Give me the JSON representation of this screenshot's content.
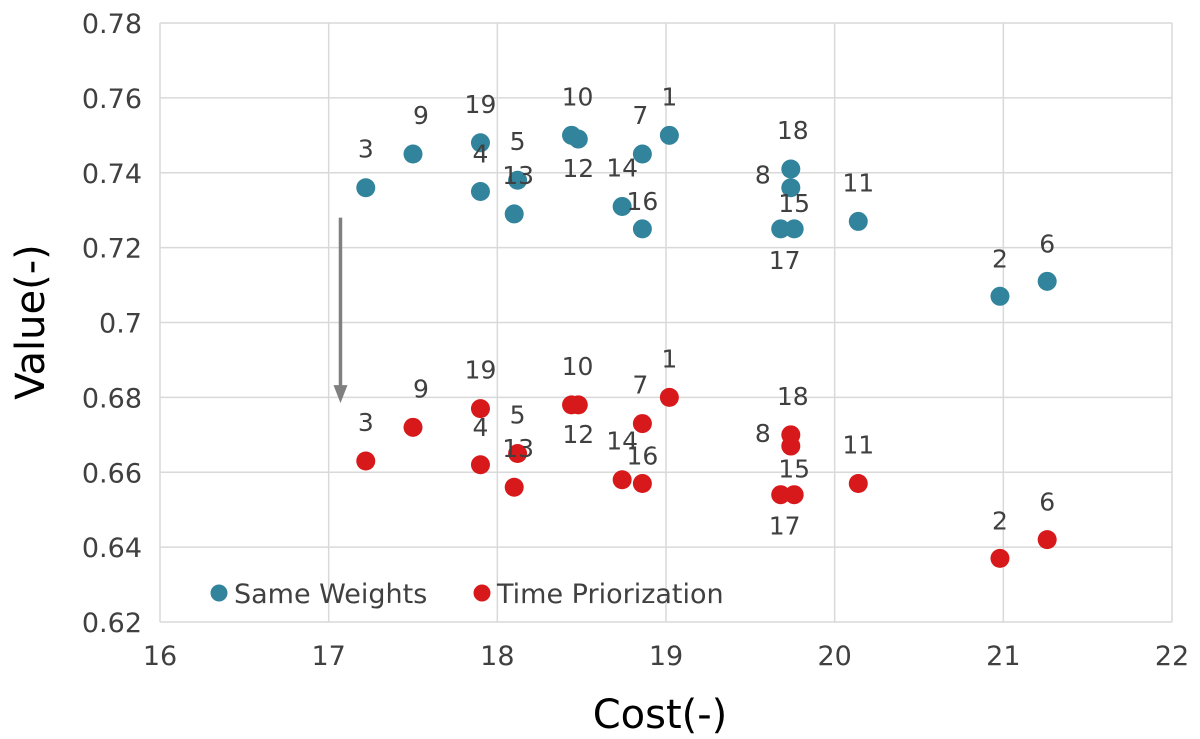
{
  "chart_data": {
    "type": "scatter",
    "xlabel": "Cost(-)",
    "ylabel": "Value(-)",
    "xlim": [
      16,
      22
    ],
    "ylim": [
      0.62,
      0.78
    ],
    "xticks": [
      16,
      17,
      18,
      19,
      20,
      21,
      22
    ],
    "yticks": [
      0.62,
      0.64,
      0.66,
      0.68,
      0.7,
      0.72,
      0.74,
      0.76,
      0.78
    ],
    "ytick_labels": [
      "0.62",
      "0.64",
      "0.66",
      "0.68",
      "0.7",
      "0.72",
      "0.74",
      "0.76",
      "0.78"
    ],
    "grid": true,
    "legend_placement": "bottom-left",
    "series": [
      {
        "name": "Same Weights",
        "color": "#31849b",
        "points": [
          {
            "label": "1",
            "x": 19.02,
            "y": 0.75
          },
          {
            "label": "2",
            "x": 20.98,
            "y": 0.707
          },
          {
            "label": "3",
            "x": 17.22,
            "y": 0.736
          },
          {
            "label": "4",
            "x": 17.9,
            "y": 0.735
          },
          {
            "label": "5",
            "x": 18.12,
            "y": 0.738
          },
          {
            "label": "6",
            "x": 21.26,
            "y": 0.711
          },
          {
            "label": "7",
            "x": 18.86,
            "y": 0.745
          },
          {
            "label": "8",
            "x": 19.74,
            "y": 0.736
          },
          {
            "label": "9",
            "x": 17.5,
            "y": 0.745
          },
          {
            "label": "10",
            "x": 18.44,
            "y": 0.75
          },
          {
            "label": "11",
            "x": 20.14,
            "y": 0.727
          },
          {
            "label": "12",
            "x": 18.48,
            "y": 0.749
          },
          {
            "label": "13",
            "x": 18.1,
            "y": 0.729
          },
          {
            "label": "14",
            "x": 18.74,
            "y": 0.731
          },
          {
            "label": "15",
            "x": 19.76,
            "y": 0.725
          },
          {
            "label": "16",
            "x": 18.86,
            "y": 0.725
          },
          {
            "label": "17",
            "x": 19.68,
            "y": 0.725
          },
          {
            "label": "18",
            "x": 19.74,
            "y": 0.741
          },
          {
            "label": "19",
            "x": 17.9,
            "y": 0.748
          }
        ]
      },
      {
        "name": "Time Priorization",
        "color": "#d7191c",
        "points": [
          {
            "label": "1",
            "x": 19.02,
            "y": 0.68
          },
          {
            "label": "2",
            "x": 20.98,
            "y": 0.637
          },
          {
            "label": "3",
            "x": 17.22,
            "y": 0.663
          },
          {
            "label": "4",
            "x": 17.9,
            "y": 0.662
          },
          {
            "label": "5",
            "x": 18.12,
            "y": 0.665
          },
          {
            "label": "6",
            "x": 21.26,
            "y": 0.642
          },
          {
            "label": "7",
            "x": 18.86,
            "y": 0.673
          },
          {
            "label": "8",
            "x": 19.74,
            "y": 0.667
          },
          {
            "label": "9",
            "x": 17.5,
            "y": 0.672
          },
          {
            "label": "10",
            "x": 18.44,
            "y": 0.678
          },
          {
            "label": "11",
            "x": 20.14,
            "y": 0.657
          },
          {
            "label": "12",
            "x": 18.48,
            "y": 0.678
          },
          {
            "label": "13",
            "x": 18.1,
            "y": 0.656
          },
          {
            "label": "14",
            "x": 18.74,
            "y": 0.658
          },
          {
            "label": "15",
            "x": 19.76,
            "y": 0.654
          },
          {
            "label": "16",
            "x": 18.86,
            "y": 0.657
          },
          {
            "label": "17",
            "x": 19.68,
            "y": 0.654
          },
          {
            "label": "18",
            "x": 19.74,
            "y": 0.67
          },
          {
            "label": "19",
            "x": 17.9,
            "y": 0.677
          }
        ]
      }
    ],
    "annotations": [
      {
        "type": "arrow",
        "color": "#808080",
        "x": 17.07,
        "y_from": 0.728,
        "y_to": 0.679
      }
    ]
  }
}
